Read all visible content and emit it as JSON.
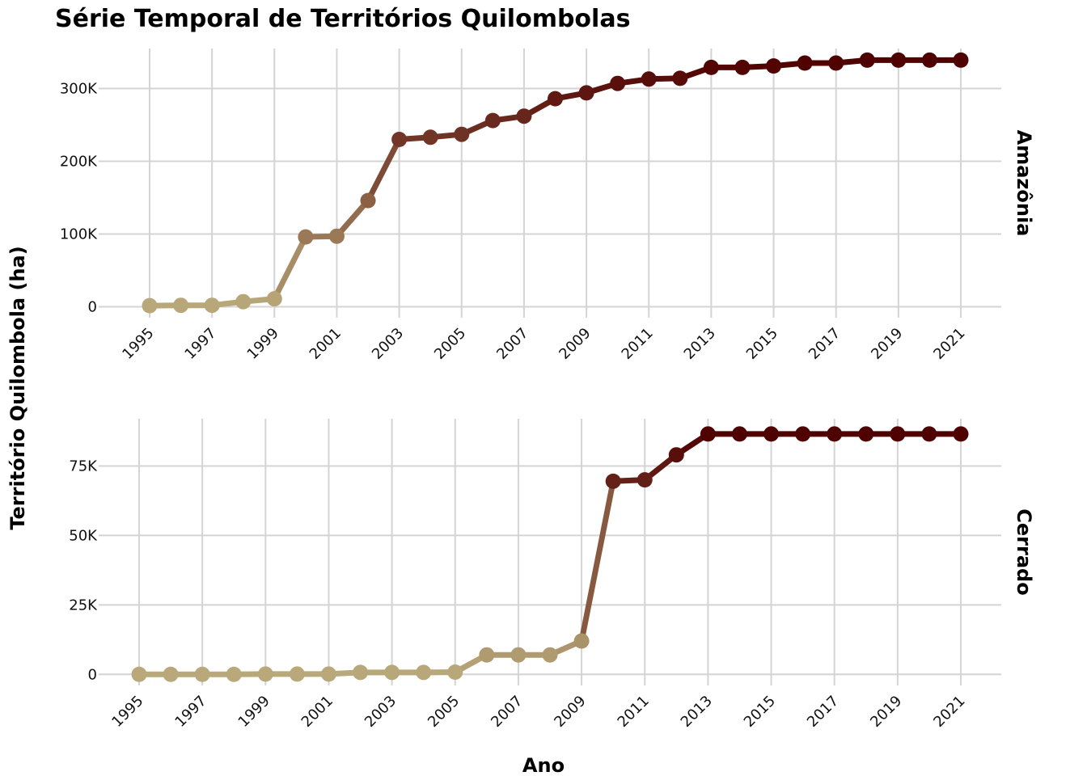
{
  "chart_data": {
    "type": "line",
    "title": "Série Temporal de Territórios Quilombolas",
    "xlabel": "Ano",
    "ylabel": "Território Quilombola (ha)",
    "x": [
      1995,
      1996,
      1997,
      1998,
      1999,
      2000,
      2001,
      2002,
      2003,
      2004,
      2005,
      2006,
      2007,
      2008,
      2009,
      2010,
      2011,
      2012,
      2013,
      2014,
      2015,
      2016,
      2017,
      2018,
      2019,
      2020,
      2021
    ],
    "x_ticks": [
      "1995",
      "1997",
      "1999",
      "2001",
      "2003",
      "2005",
      "2007",
      "2009",
      "2011",
      "2013",
      "2015",
      "2017",
      "2019",
      "2021"
    ],
    "color_low": "#b9a97a",
    "color_high": "#4f0000",
    "grid": true,
    "panels": [
      {
        "name": "Amazônia",
        "ylim": [
          -15000,
          355000
        ],
        "y_ticks": [
          0,
          100000,
          200000,
          300000
        ],
        "y_tick_labels": [
          "0",
          "100K",
          "200K",
          "300K"
        ],
        "values": [
          1500,
          2000,
          2000,
          7000,
          11000,
          96000,
          97000,
          146000,
          230000,
          233000,
          237000,
          256000,
          262000,
          286000,
          294000,
          307000,
          313000,
          314000,
          329000,
          329000,
          331000,
          335000,
          335000,
          339000,
          339000,
          339000,
          339000
        ]
      },
      {
        "name": "Cerrado",
        "ylim": [
          -4000,
          92000
        ],
        "y_ticks": [
          0,
          25000,
          50000,
          75000
        ],
        "y_tick_labels": [
          "0",
          "25K",
          "50K",
          "75K"
        ],
        "values": [
          0,
          0,
          0,
          0,
          100,
          100,
          100,
          700,
          700,
          700,
          800,
          7000,
          7000,
          7000,
          12000,
          69500,
          70000,
          79000,
          86500,
          86500,
          86500,
          86500,
          86500,
          86500,
          86500,
          86500,
          86500
        ]
      }
    ]
  }
}
